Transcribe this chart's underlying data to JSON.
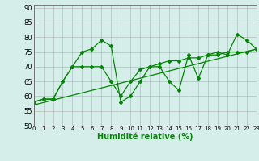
{
  "xlabel": "Humidité relative (%)",
  "xlim": [
    0,
    23
  ],
  "ylim": [
    50,
    91
  ],
  "yticks": [
    50,
    55,
    60,
    65,
    70,
    75,
    80,
    85,
    90
  ],
  "xticks": [
    0,
    1,
    2,
    3,
    4,
    5,
    6,
    7,
    8,
    9,
    10,
    11,
    12,
    13,
    14,
    15,
    16,
    17,
    18,
    19,
    20,
    21,
    22,
    23
  ],
  "bg_color": "#d5eeea",
  "grid_color": "#b0b0b0",
  "line_color": "#008800",
  "line1_y": [
    58,
    59,
    59,
    65,
    70,
    75,
    76,
    79,
    77,
    58,
    60,
    65,
    70,
    70,
    65,
    62,
    74,
    66,
    74,
    75,
    74,
    81,
    79,
    76
  ],
  "line2_y": [
    58,
    59,
    59,
    65,
    70,
    70,
    70,
    70,
    65,
    60,
    65,
    69,
    70,
    71,
    72,
    72,
    73,
    73,
    74,
    74,
    75,
    75,
    75,
    76
  ],
  "line3_x": [
    0,
    23
  ],
  "line3_y": [
    57,
    76
  ]
}
